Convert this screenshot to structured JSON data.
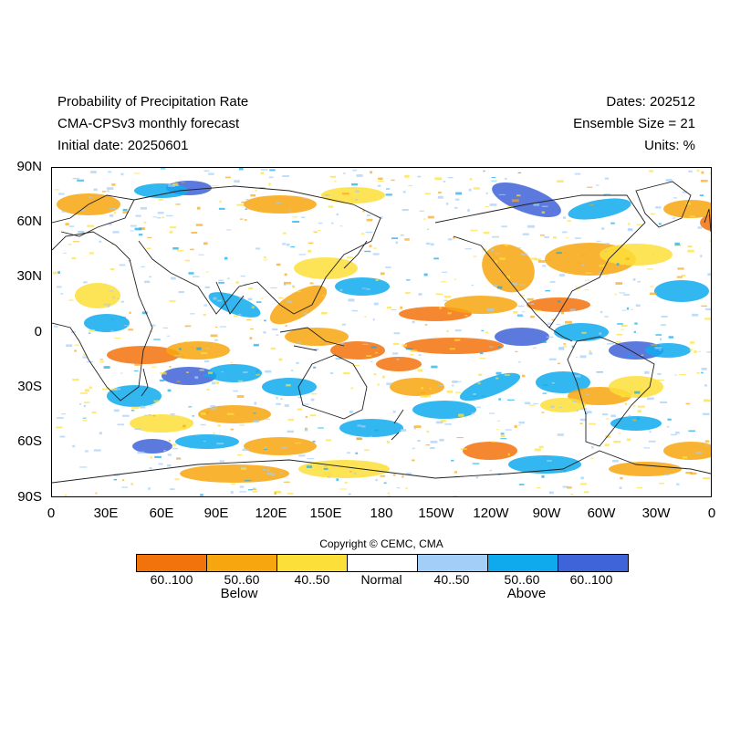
{
  "header": {
    "title": "Probability of Precipitation Rate",
    "model": "CMA-CPSv3 monthly forecast",
    "initial_date": "Initial date: 20250601",
    "dates": "Dates: 202512",
    "ensemble": "Ensemble Size = 21",
    "units": "Units: %"
  },
  "map": {
    "lat_labels": [
      "90N",
      "60N",
      "30N",
      "0",
      "30S",
      "60S",
      "90S"
    ],
    "lon_labels": [
      "0",
      "30E",
      "60E",
      "90E",
      "120E",
      "150E",
      "180",
      "150W",
      "120W",
      "90W",
      "60W",
      "30W",
      "0"
    ],
    "coastline_color": "#222222"
  },
  "copyright": "Copyright © CEMC, CMA",
  "legend": {
    "bins": [
      {
        "label": "60..100",
        "color": "#f2720c",
        "group": "below"
      },
      {
        "label": "50..60",
        "color": "#f8a60f",
        "group": "below"
      },
      {
        "label": "40..50",
        "color": "#fddf3a",
        "group": "below"
      },
      {
        "label": "Normal",
        "color": "#ffffff",
        "group": "normal"
      },
      {
        "label": "40..50",
        "color": "#a3cef8",
        "group": "above"
      },
      {
        "label": "50..60",
        "color": "#0faaed",
        "group": "above"
      },
      {
        "label": "60..100",
        "color": "#3f63d8",
        "group": "above"
      }
    ],
    "below_label": "Below",
    "above_label": "Above"
  }
}
